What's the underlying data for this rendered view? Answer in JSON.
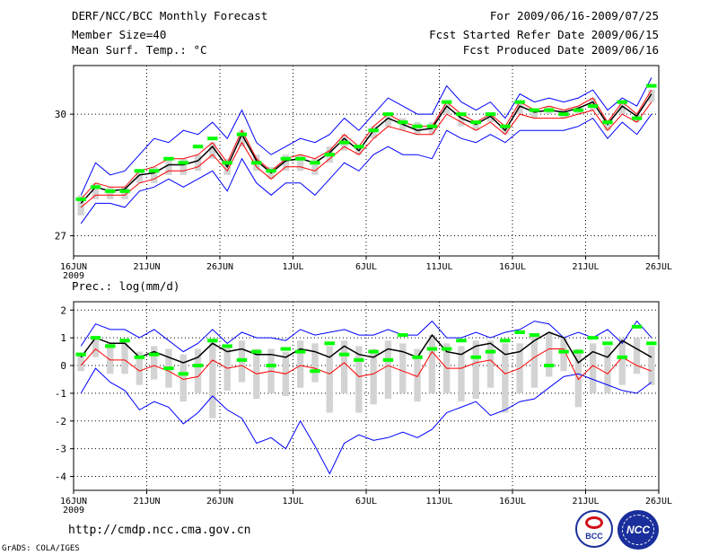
{
  "header": {
    "title": "DERF/NCC/BCC Monthly Forecast",
    "member_size": "Member Size=40",
    "variable": "Mean Surf. Temp.: °C",
    "period": "For 2009/06/16-2009/07/25",
    "refer_date": "Fcst Started Refer Date 2009/06/15",
    "produced_date": "Fcst Produced Date 2009/06/16"
  },
  "precip_label": "Prec.: log(mm/d)",
  "footer": {
    "url": "http://cmdp.ncc.cma.gov.cn",
    "grads": "GrADS: COLA/IGES",
    "logo_bcc": "BCC",
    "logo_ncc": "NCC"
  },
  "colors": {
    "max_min": "#0000ff",
    "mean": "#000000",
    "pm_std": "#ff0000",
    "obs": "#00ff00",
    "box": "#d3d3d3"
  },
  "chart_data": [
    {
      "type": "line",
      "title": "Mean Surf. Temp.: °C",
      "xlabel_ticks": [
        "16JUN",
        "21JUN",
        "26JUN",
        "1JUL",
        "6JUL",
        "11JUL",
        "16JUL",
        "21JUL",
        "26JUL"
      ],
      "tick_year": "2009",
      "ylim": [
        26.5,
        31.2
      ],
      "yticks": [
        27,
        30
      ],
      "x_days": 40,
      "series": [
        {
          "name": "max",
          "values": [
            28.0,
            28.8,
            28.5,
            28.6,
            29.0,
            29.4,
            29.3,
            29.6,
            29.5,
            29.8,
            29.4,
            30.1,
            29.3,
            29.0,
            29.2,
            29.4,
            29.3,
            29.5,
            29.9,
            29.6,
            30.0,
            30.4,
            30.2,
            30.0,
            30.0,
            30.7,
            30.3,
            30.1,
            30.3,
            29.9,
            30.5,
            30.3,
            30.4,
            30.3,
            30.4,
            30.6,
            30.1,
            30.4,
            30.2,
            30.9
          ]
        },
        {
          "name": "mean_plus_std",
          "values": [
            27.9,
            28.3,
            28.2,
            28.2,
            28.6,
            28.7,
            28.9,
            28.9,
            29.0,
            29.3,
            28.8,
            29.6,
            28.9,
            28.6,
            28.9,
            29.0,
            28.9,
            29.1,
            29.5,
            29.2,
            29.7,
            30.0,
            29.8,
            29.7,
            29.7,
            30.3,
            30.0,
            29.8,
            30.0,
            29.7,
            30.3,
            30.1,
            30.2,
            30.1,
            30.2,
            30.4,
            29.8,
            30.3,
            30.0,
            30.6
          ]
        },
        {
          "name": "mean",
          "values": [
            27.8,
            28.2,
            28.1,
            28.15,
            28.5,
            28.55,
            28.75,
            28.75,
            28.85,
            29.2,
            28.7,
            29.5,
            28.85,
            28.55,
            28.85,
            28.9,
            28.8,
            29.05,
            29.4,
            29.1,
            29.6,
            29.9,
            29.75,
            29.6,
            29.65,
            30.2,
            29.9,
            29.75,
            29.95,
            29.6,
            30.2,
            30.05,
            30.1,
            30.05,
            30.15,
            30.3,
            29.75,
            30.2,
            29.95,
            30.5
          ]
        },
        {
          "name": "mean_minus_std",
          "values": [
            27.7,
            28.0,
            28.0,
            28.0,
            28.3,
            28.4,
            28.6,
            28.6,
            28.7,
            29.0,
            28.6,
            29.3,
            28.7,
            28.4,
            28.7,
            28.7,
            28.6,
            28.9,
            29.2,
            29.0,
            29.4,
            29.7,
            29.6,
            29.5,
            29.5,
            30.0,
            29.8,
            29.6,
            29.8,
            29.5,
            30.0,
            29.9,
            29.9,
            29.9,
            30.0,
            30.1,
            29.6,
            30.0,
            29.8,
            30.3
          ]
        },
        {
          "name": "min",
          "values": [
            27.3,
            27.8,
            27.8,
            27.7,
            28.1,
            28.2,
            28.4,
            28.2,
            28.4,
            28.6,
            28.1,
            28.9,
            28.3,
            28.0,
            28.3,
            28.3,
            28.0,
            28.4,
            28.8,
            28.6,
            29.0,
            29.2,
            29.0,
            29.0,
            28.9,
            29.6,
            29.4,
            29.3,
            29.5,
            29.3,
            29.6,
            29.6,
            29.6,
            29.6,
            29.7,
            29.9,
            29.4,
            29.8,
            29.5,
            30.0
          ]
        },
        {
          "name": "box_high",
          "values": [
            28.0,
            28.3,
            28.2,
            28.2,
            28.6,
            28.7,
            28.9,
            28.9,
            29.0,
            29.3,
            28.9,
            29.6,
            29.0,
            28.7,
            29.0,
            29.0,
            28.9,
            29.2,
            29.5,
            29.2,
            29.7,
            30.0,
            29.9,
            29.8,
            29.8,
            30.3,
            30.0,
            29.8,
            30.0,
            29.7,
            30.3,
            30.1,
            30.2,
            30.1,
            30.2,
            30.4,
            29.8,
            30.3,
            30.0,
            30.6
          ]
        },
        {
          "name": "box_low",
          "values": [
            27.5,
            27.9,
            27.9,
            27.9,
            28.3,
            28.3,
            28.5,
            28.5,
            28.6,
            28.9,
            28.5,
            29.2,
            28.6,
            28.4,
            28.6,
            28.6,
            28.5,
            28.8,
            29.1,
            29.0,
            29.4,
            29.7,
            29.6,
            29.5,
            29.5,
            30.0,
            29.7,
            29.6,
            29.8,
            29.5,
            30.0,
            29.9,
            30.0,
            29.9,
            30.0,
            30.1,
            29.6,
            30.0,
            29.8,
            30.3
          ]
        },
        {
          "name": "obs",
          "values": [
            27.9,
            28.2,
            28.1,
            28.1,
            28.6,
            28.6,
            28.9,
            28.8,
            29.2,
            29.4,
            28.8,
            29.5,
            28.8,
            28.6,
            28.9,
            28.9,
            28.8,
            29.0,
            29.3,
            29.2,
            29.6,
            30.0,
            29.8,
            29.7,
            29.7,
            30.3,
            30.0,
            29.8,
            30.0,
            29.7,
            30.3,
            30.1,
            30.1,
            30.0,
            30.1,
            30.2,
            29.8,
            30.3,
            29.9,
            30.7
          ]
        }
      ]
    },
    {
      "type": "line",
      "title": "Prec.: log(mm/d)",
      "xlabel_ticks": [
        "16JUN",
        "21JUN",
        "26JUN",
        "1JUL",
        "6JUL",
        "11JUL",
        "16JUL",
        "21JUL",
        "26JUL"
      ],
      "tick_year": "2009",
      "ylim": [
        -4.5,
        2.3
      ],
      "yticks": [
        2,
        1,
        0,
        -1,
        -2,
        -3,
        -4
      ],
      "x_days": 40,
      "series": [
        {
          "name": "max",
          "values": [
            0.7,
            1.5,
            1.3,
            1.3,
            1.0,
            1.3,
            0.9,
            0.5,
            0.8,
            1.3,
            0.8,
            1.2,
            1.0,
            1.0,
            0.9,
            1.3,
            1.1,
            1.2,
            1.3,
            1.1,
            1.1,
            1.3,
            1.1,
            1.1,
            1.6,
            1.0,
            1.0,
            1.2,
            1.0,
            1.2,
            1.3,
            1.6,
            1.5,
            1.0,
            1.2,
            1.0,
            1.3,
            0.8,
            1.6,
            1.0
          ]
        },
        {
          "name": "mean",
          "values": [
            0.3,
            1.0,
            0.8,
            0.8,
            0.3,
            0.5,
            0.3,
            0.1,
            0.3,
            0.8,
            0.5,
            0.6,
            0.4,
            0.4,
            0.3,
            0.6,
            0.5,
            0.3,
            0.7,
            0.4,
            0.3,
            0.6,
            0.5,
            0.3,
            1.1,
            0.5,
            0.4,
            0.7,
            0.8,
            0.4,
            0.5,
            0.9,
            1.2,
            1.0,
            0.1,
            0.5,
            0.3,
            0.9,
            0.6,
            0.3
          ]
        },
        {
          "name": "mean_minus_std",
          "values": [
            0.0,
            0.6,
            0.2,
            0.2,
            -0.2,
            0.0,
            -0.2,
            -0.5,
            -0.4,
            0.2,
            -0.1,
            0.0,
            -0.3,
            -0.2,
            -0.3,
            0.0,
            -0.1,
            -0.3,
            0.1,
            -0.4,
            -0.3,
            0.0,
            -0.2,
            -0.4,
            0.5,
            -0.1,
            -0.1,
            0.1,
            0.2,
            -0.3,
            -0.1,
            0.3,
            0.6,
            0.6,
            -0.5,
            0.0,
            -0.3,
            0.3,
            0.0,
            -0.2
          ]
        },
        {
          "name": "min",
          "values": [
            -1.0,
            -0.1,
            -0.6,
            -0.9,
            -1.6,
            -1.3,
            -1.5,
            -2.1,
            -1.7,
            -1.1,
            -1.6,
            -1.9,
            -2.8,
            -2.6,
            -3.0,
            -2.0,
            -2.9,
            -3.9,
            -2.8,
            -2.5,
            -2.7,
            -2.6,
            -2.4,
            -2.6,
            -2.3,
            -1.7,
            -1.5,
            -1.3,
            -1.8,
            -1.6,
            -1.3,
            -1.2,
            -0.8,
            -0.4,
            -0.3,
            -0.5,
            -0.7,
            -0.9,
            -1.0,
            -0.6
          ]
        },
        {
          "name": "box_high",
          "values": [
            0.4,
            1.0,
            0.8,
            0.9,
            0.5,
            0.7,
            0.6,
            0.4,
            0.6,
            0.9,
            0.7,
            0.9,
            0.6,
            0.6,
            0.5,
            0.9,
            0.8,
            0.7,
            0.9,
            0.7,
            0.6,
            0.9,
            0.8,
            0.6,
            1.1,
            0.8,
            0.7,
            0.9,
            0.9,
            0.8,
            0.8,
            1.1,
            1.2,
            1.0,
            0.6,
            0.8,
            0.7,
            1.0,
            1.0,
            0.7
          ]
        },
        {
          "name": "box_low",
          "values": [
            -0.2,
            0.3,
            -0.3,
            -0.3,
            -0.7,
            -0.5,
            -0.8,
            -1.3,
            -1.0,
            -1.9,
            -0.9,
            -0.6,
            -1.2,
            -1.0,
            -1.1,
            -0.8,
            -0.6,
            -1.7,
            -1.0,
            -1.7,
            -1.4,
            -1.2,
            -1.0,
            -1.3,
            -1.0,
            -1.0,
            -1.3,
            -1.2,
            -0.8,
            -1.7,
            -1.0,
            -0.8,
            -0.4,
            -0.2,
            -1.5,
            -1.0,
            -1.0,
            -0.7,
            -0.3,
            -0.7
          ]
        },
        {
          "name": "obs",
          "values": [
            0.4,
            1.0,
            0.7,
            0.9,
            0.3,
            0.4,
            -0.1,
            -0.3,
            0.0,
            0.9,
            0.7,
            0.2,
            0.5,
            0.0,
            0.6,
            0.5,
            -0.2,
            0.8,
            0.4,
            0.2,
            0.5,
            0.2,
            1.1,
            0.3,
            0.6,
            0.6,
            0.9,
            0.3,
            0.5,
            0.9,
            1.2,
            1.1,
            0.0,
            0.5,
            0.5,
            1.0,
            0.8,
            0.3,
            1.4,
            0.8
          ]
        }
      ]
    }
  ]
}
